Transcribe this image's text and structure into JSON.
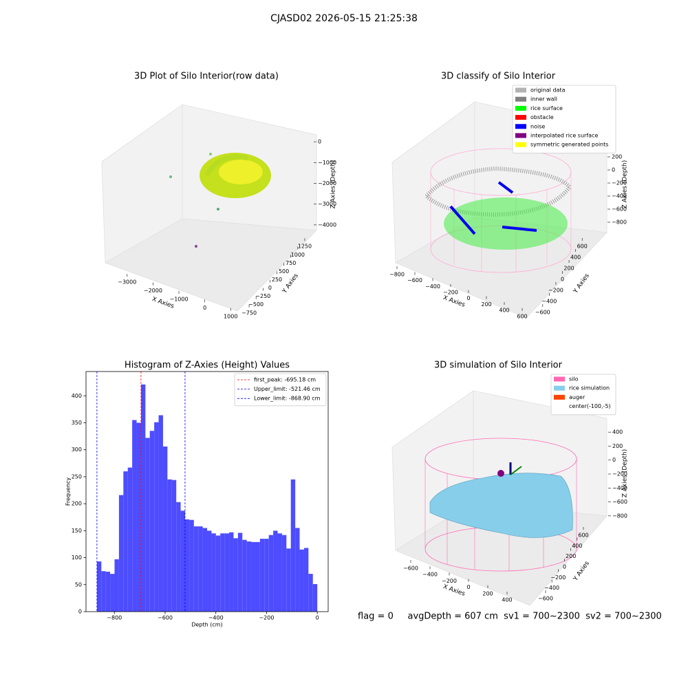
{
  "title": "CJASD02 2026-05-15 21:25:38",
  "footer": "flag = 0     avgDepth = 607 cm  sv1 = 700~2300  sv2 = 700~2300",
  "chart_data": [
    {
      "type": "scatter3d",
      "title": "3D Plot of Silo Interior(row data)",
      "xlabel": "X Axies",
      "ylabel": "Y Axies",
      "zlabel": "Z Axies (Depth)",
      "xlim": [
        -3500,
        1100
      ],
      "ylim": [
        -900,
        1400
      ],
      "zlim": [
        -4500,
        300
      ],
      "xticks": [
        {
          "value": -3000,
          "label": "−3000"
        },
        {
          "value": -2000,
          "label": "−2000"
        },
        {
          "value": -1000,
          "label": "−1000"
        },
        0,
        1000
      ],
      "yticks": [
        {
          "value": -750,
          "label": "−750"
        },
        {
          "value": -500,
          "label": "−500"
        },
        {
          "value": -250,
          "label": "−250"
        },
        0,
        250,
        500,
        750,
        1000,
        1250
      ],
      "zticks": [
        {
          "value": -4000,
          "label": "−4000"
        },
        {
          "value": -3000,
          "label": "−3000"
        },
        {
          "value": -2000,
          "label": "−2000"
        },
        {
          "value": -1000,
          "label": "−1000"
        },
        0
      ]
    },
    {
      "type": "scatter3d",
      "title": "3D classify of Silo Interior",
      "xlabel": "X Axies",
      "ylabel": "Y Axies",
      "zlabel": "Z Axies (Depth)",
      "xlim": [
        -850,
        650
      ],
      "ylim": [
        -700,
        700
      ],
      "zlim": [
        -900,
        300
      ],
      "xticks": [
        {
          "value": -800,
          "label": "−800"
        },
        {
          "value": -600,
          "label": "−600"
        },
        {
          "value": -400,
          "label": "−400"
        },
        {
          "value": -200,
          "label": "−200"
        },
        0,
        200,
        400,
        600
      ],
      "yticks": [
        {
          "value": -600,
          "label": "−600"
        },
        {
          "value": -400,
          "label": "−400"
        },
        {
          "value": -200,
          "label": "−200"
        },
        0,
        200,
        400,
        600
      ],
      "zticks": [
        {
          "value": -800,
          "label": "−800"
        },
        {
          "value": -600,
          "label": "−600"
        },
        {
          "value": -400,
          "label": "−400"
        },
        {
          "value": -200,
          "label": "−200"
        },
        0,
        200
      ],
      "legend": [
        {
          "name": "original data",
          "color": "#b3b3b3"
        },
        {
          "name": "inner wall",
          "color": "#808080"
        },
        {
          "name": "rice surface",
          "color": "#00ff00"
        },
        {
          "name": "obstacle",
          "color": "#ff0000"
        },
        {
          "name": "noise",
          "color": "#0000ff"
        },
        {
          "name": "interpolated rice surface",
          "color": "#800080"
        },
        {
          "name": "symmetric generated points",
          "color": "#ffff00"
        }
      ]
    },
    {
      "type": "histogram",
      "title": "Histogram of Z-Axies (Height) Values",
      "xlabel": "Depth (cm)",
      "ylabel": "Frequency",
      "color": "#4d4dff",
      "xlim": [
        -912,
        43
      ],
      "ylim": [
        0,
        445
      ],
      "xticks": [
        {
          "value": -800,
          "label": "−800"
        },
        {
          "value": -600,
          "label": "−600"
        },
        {
          "value": -400,
          "label": "−400"
        },
        {
          "value": -200,
          "label": "−200"
        },
        0
      ],
      "yticks": [
        0,
        50,
        100,
        150,
        200,
        250,
        300,
        350,
        400
      ],
      "bins": [
        -868.9,
        -851.52,
        -834.14,
        -816.77,
        -799.39,
        -782.01,
        -764.63,
        -747.25,
        -729.88,
        -712.5,
        -695.12,
        -677.74,
        -660.36,
        -642.99,
        -625.61,
        -608.23,
        -590.85,
        -573.47,
        -556.1,
        -538.72,
        -521.34,
        -503.96,
        -486.58,
        -469.21,
        -451.83,
        -434.45,
        -417.07,
        -399.69,
        -382.32,
        -364.94,
        -347.56,
        -330.18,
        -312.8,
        -295.43,
        -278.05,
        -260.67,
        -243.29,
        -225.91,
        -208.54,
        -191.16,
        -173.78,
        -156.4,
        -139.02,
        -121.65,
        -104.27,
        -86.89,
        -69.51,
        -52.13,
        -34.76,
        -17.38,
        0
      ],
      "values": [
        93,
        75,
        74,
        70,
        97,
        216,
        260,
        267,
        355,
        350,
        421,
        322,
        335,
        351,
        364,
        306,
        245,
        244,
        203,
        187,
        171,
        170,
        158,
        158,
        155,
        150,
        145,
        141,
        145,
        145,
        147,
        136,
        146,
        133,
        130,
        129,
        129,
        135,
        135,
        142,
        150,
        145,
        142,
        117,
        245,
        155,
        115,
        118,
        70,
        51
      ],
      "vlines": [
        {
          "name": "first_peak: -695.18 cm",
          "value": -695.18,
          "color": "#ff0000"
        },
        {
          "name": "Upper_limit: -521.46 cm",
          "value": -521.46,
          "color": "#0000ff"
        },
        {
          "name": "Lower_limit: -868.90 cm",
          "value": -868.9,
          "color": "#0000ff"
        }
      ],
      "legend_loc": "upper right"
    },
    {
      "type": "surface3d",
      "title": "3D simulation of Silo Interior",
      "xlabel": "X Axies",
      "ylabel": "Y Axies",
      "zlabel": "Z Axies (Depth)",
      "xlim": [
        -700,
        500
      ],
      "ylim": [
        -700,
        700
      ],
      "zlim": [
        -900,
        500
      ],
      "xticks": [
        {
          "value": -600,
          "label": "−600"
        },
        {
          "value": -400,
          "label": "−400"
        },
        {
          "value": -200,
          "label": "−200"
        },
        0,
        200,
        400
      ],
      "yticks": [
        {
          "value": -600,
          "label": "−600"
        },
        {
          "value": -400,
          "label": "−400"
        },
        {
          "value": -200,
          "label": "−200"
        },
        0,
        200,
        400,
        600
      ],
      "zticks": [
        {
          "value": -800,
          "label": "−800"
        },
        {
          "value": -600,
          "label": "−600"
        },
        {
          "value": -400,
          "label": "−400"
        },
        {
          "value": -200,
          "label": "−200"
        },
        0,
        200,
        400
      ],
      "legend": [
        {
          "name": "silo",
          "color": "#ff69b4"
        },
        {
          "name": "rice simulation",
          "color": "#87ceeb"
        },
        {
          "name": "auger",
          "color": "#ff4500"
        },
        {
          "name": "center(-100,-5)"
        }
      ]
    }
  ]
}
